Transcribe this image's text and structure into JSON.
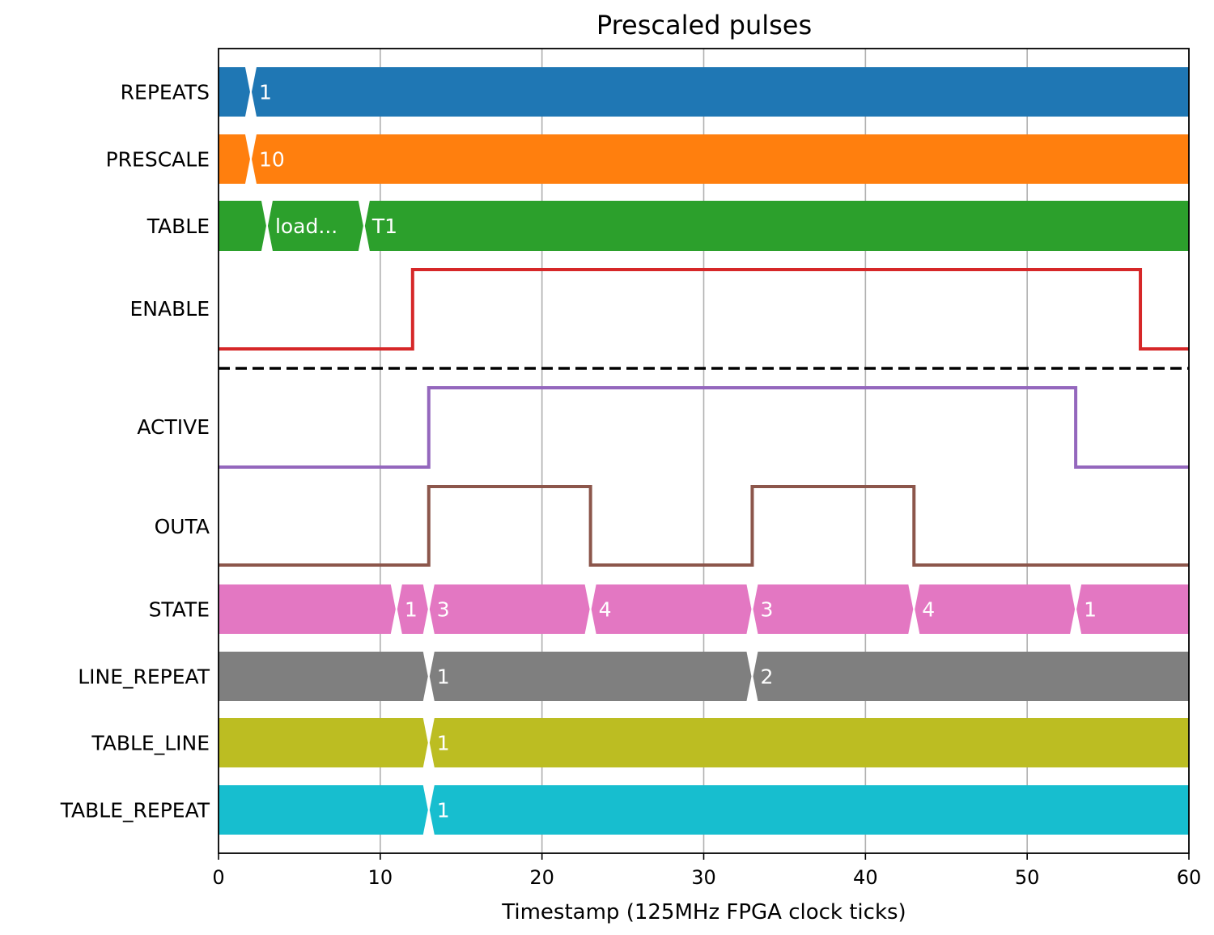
{
  "chart_data": {
    "type": "timing",
    "title": "Prescaled pulses",
    "xlabel": "Timestamp (125MHz FPGA clock ticks)",
    "xlim": [
      0,
      60
    ],
    "xticks": [
      0,
      10,
      20,
      30,
      40,
      50,
      60
    ],
    "grid": "vertical",
    "divider_after_row": "ENABLE",
    "rows": [
      {
        "name": "REPEATS",
        "kind": "bus",
        "color": "#1f77b4",
        "segments": [
          {
            "start": 0,
            "value": ""
          },
          {
            "start": 2,
            "value": "1"
          }
        ]
      },
      {
        "name": "PRESCALE",
        "kind": "bus",
        "color": "#ff7f0e",
        "segments": [
          {
            "start": 0,
            "value": ""
          },
          {
            "start": 2,
            "value": "10"
          }
        ]
      },
      {
        "name": "TABLE",
        "kind": "bus",
        "color": "#2ca02c",
        "segments": [
          {
            "start": 0,
            "value": ""
          },
          {
            "start": 3,
            "value": "load..."
          },
          {
            "start": 9,
            "value": "T1"
          }
        ]
      },
      {
        "name": "ENABLE",
        "kind": "bit",
        "color": "#d62728",
        "transitions": [
          {
            "t": 0,
            "v": 0
          },
          {
            "t": 12,
            "v": 1
          },
          {
            "t": 57,
            "v": 0
          }
        ]
      },
      {
        "name": "ACTIVE",
        "kind": "bit",
        "color": "#9467bd",
        "transitions": [
          {
            "t": 0,
            "v": 0
          },
          {
            "t": 13,
            "v": 1
          },
          {
            "t": 53,
            "v": 0
          }
        ]
      },
      {
        "name": "OUTA",
        "kind": "bit",
        "color": "#8c564b",
        "transitions": [
          {
            "t": 0,
            "v": 0
          },
          {
            "t": 13,
            "v": 1
          },
          {
            "t": 23,
            "v": 0
          },
          {
            "t": 33,
            "v": 1
          },
          {
            "t": 43,
            "v": 0
          }
        ]
      },
      {
        "name": "STATE",
        "kind": "bus",
        "color": "#e377c2",
        "segments": [
          {
            "start": 0,
            "value": ""
          },
          {
            "start": 11,
            "value": "1"
          },
          {
            "start": 13,
            "value": "3"
          },
          {
            "start": 23,
            "value": "4"
          },
          {
            "start": 33,
            "value": "3"
          },
          {
            "start": 43,
            "value": "4"
          },
          {
            "start": 53,
            "value": "1"
          }
        ]
      },
      {
        "name": "LINE_REPEAT",
        "kind": "bus",
        "color": "#7f7f7f",
        "segments": [
          {
            "start": 0,
            "value": ""
          },
          {
            "start": 13,
            "value": "1"
          },
          {
            "start": 33,
            "value": "2"
          }
        ]
      },
      {
        "name": "TABLE_LINE",
        "kind": "bus",
        "color": "#bcbd22",
        "segments": [
          {
            "start": 0,
            "value": ""
          },
          {
            "start": 13,
            "value": "1"
          }
        ]
      },
      {
        "name": "TABLE_REPEAT",
        "kind": "bus",
        "color": "#17becf",
        "segments": [
          {
            "start": 0,
            "value": ""
          },
          {
            "start": 13,
            "value": "1"
          }
        ]
      }
    ]
  }
}
